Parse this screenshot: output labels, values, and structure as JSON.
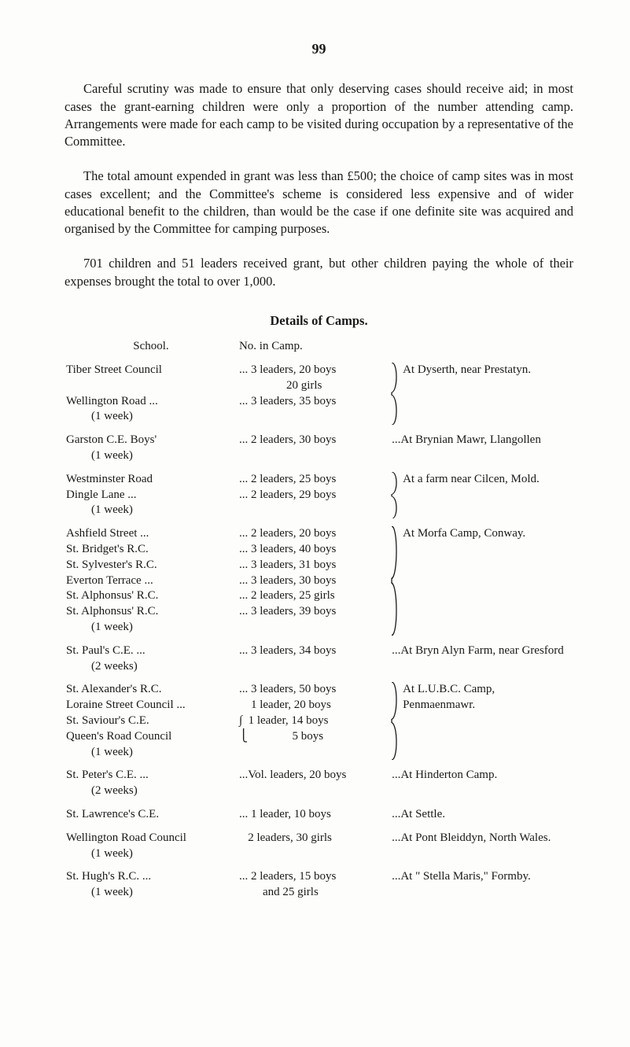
{
  "page_number": "99",
  "paragraphs": [
    "Careful scrutiny was made to ensure that only deserving cases should receive aid; in most cases the grant-earning children were only a proportion of the number attending camp. Arrangements were made for each camp to be visited during occupation by a representative of the Committee.",
    "The total amount expended in grant was less than £500; the choice of camp sites was in most cases excellent; and the Committee's scheme is considered less expensive and of wider educational benefit to the children, than would be the case if one definite site was acquired and organised by the Committee for camping purposes.",
    "701 children and 51 leaders received grant, but other children paying the whole of their expenses brought the total to over 1,000."
  ],
  "details_title": "Details of Camps.",
  "headers": {
    "school": "School.",
    "no": "No. in Camp."
  },
  "groups": [
    {
      "rows": [
        {
          "school": "Tiber Street Council",
          "no": "... 3 leaders, 20 boys"
        },
        {
          "school": "",
          "no": "                20 girls"
        },
        {
          "school": "Wellington Road ...",
          "no": "... 3 leaders, 35 boys"
        },
        {
          "school": "(1 week)",
          "indent": true,
          "no": ""
        }
      ],
      "brace": true,
      "location": "At Dyserth, near Prestatyn."
    },
    {
      "rows": [
        {
          "school": "Garston C.E. Boys'",
          "no": "... 2 leaders, 30 boys"
        },
        {
          "school": "(1 week)",
          "indent": true,
          "no": ""
        }
      ],
      "brace": false,
      "location": "...At Brynian Mawr, Llangollen"
    },
    {
      "rows": [
        {
          "school": "Westminster Road",
          "no": "... 2 leaders, 25 boys"
        },
        {
          "school": "Dingle Lane     ...",
          "no": "... 2 leaders, 29 boys"
        },
        {
          "school": "(1 week)",
          "indent": true,
          "no": ""
        }
      ],
      "brace": true,
      "location": "At a farm near Cilcen, Mold."
    },
    {
      "rows": [
        {
          "school": "Ashfield Street    ...",
          "no": "... 2 leaders, 20 boys"
        },
        {
          "school": "St. Bridget's R.C.",
          "no": "... 3 leaders, 40 boys"
        },
        {
          "school": "St. Sylvester's R.C.",
          "no": "... 3 leaders, 31 boys"
        },
        {
          "school": "Everton Terrace ...",
          "no": "... 3 leaders, 30 boys"
        },
        {
          "school": "St. Alphonsus' R.C.",
          "no": "... 2 leaders, 25 girls"
        },
        {
          "school": "St. Alphonsus' R.C.",
          "no": "... 3 leaders, 39 boys"
        },
        {
          "school": "(1 week)",
          "indent": true,
          "no": ""
        }
      ],
      "brace": true,
      "location": "At Morfa Camp, Conway."
    },
    {
      "rows": [
        {
          "school": "St. Paul's C.E.   ...",
          "no": "... 3 leaders, 34 boys"
        },
        {
          "school": "(2 weeks)",
          "indent": true,
          "no": ""
        }
      ],
      "brace": false,
      "location": "...At Bryn Alyn Farm, near Gresford"
    },
    {
      "rows": [
        {
          "school": "St. Alexander's R.C.",
          "no": "... 3 leaders, 50 boys"
        },
        {
          "school": "Loraine Street Council ...",
          "no": "    1 leader, 20 boys"
        },
        {
          "school": "St. Saviour's C.E.",
          "no": "∫  1 leader, 14 boys"
        },
        {
          "school": "Queen's Road Council",
          "no": "⎩               5 boys"
        },
        {
          "school": "(1 week)",
          "indent": true,
          "no": ""
        }
      ],
      "brace": true,
      "location_lines": [
        "At L.U.B.C. Camp,",
        "Penmaenmawr."
      ]
    },
    {
      "rows": [
        {
          "school": "St. Peter's C.E.  ...",
          "no": "...Vol. leaders, 20 boys"
        },
        {
          "school": "(2 weeks)",
          "indent": true,
          "no": ""
        }
      ],
      "brace": false,
      "location": "...At Hinderton Camp."
    },
    {
      "rows": [
        {
          "school": "St. Lawrence's C.E.",
          "no": "... 1 leader, 10 boys"
        }
      ],
      "brace": false,
      "location": "...At Settle."
    },
    {
      "rows": [
        {
          "school": "Wellington Road Council",
          "no": "   2 leaders, 30 girls"
        },
        {
          "school": "(1 week)",
          "indent": true,
          "no": ""
        }
      ],
      "brace": false,
      "location": "...At Pont Bleiddyn, North Wales."
    },
    {
      "rows": [
        {
          "school": "St. Hugh's R.C. ...",
          "no": "... 2 leaders, 15 boys"
        },
        {
          "school": "(1 week)",
          "indent": true,
          "no": "        and 25 girls"
        }
      ],
      "brace": false,
      "location": "...At \" Stella Maris,\" Formby."
    }
  ]
}
